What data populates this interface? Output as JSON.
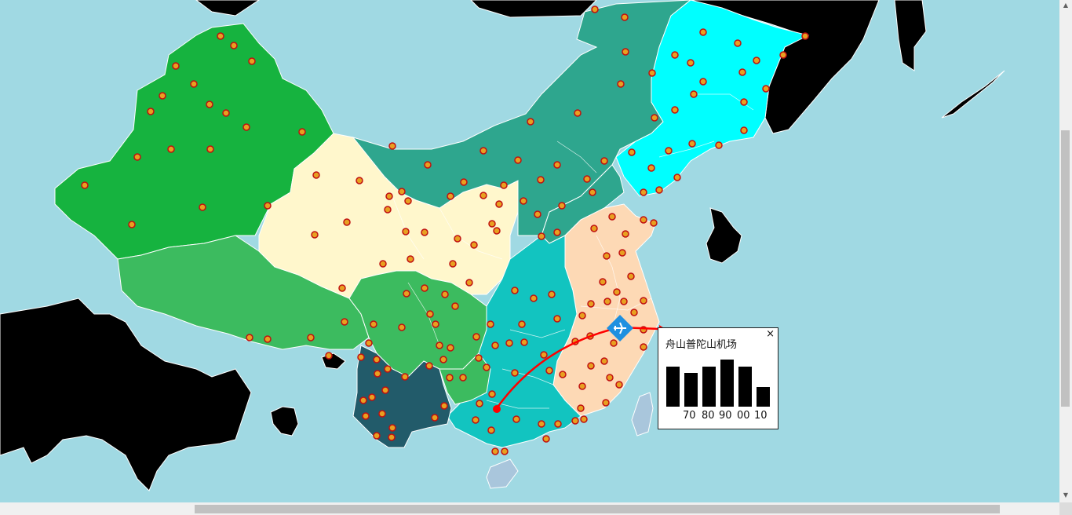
{
  "popup": {
    "title": "舟山普陀山机场",
    "close_glyph": "×",
    "x_labels": [
      "70",
      "80",
      "90",
      "00",
      "10"
    ]
  },
  "chart_data": {
    "type": "bar",
    "title": "舟山普陀山机场",
    "categories": [
      "",
      "",
      "",
      "",
      "",
      ""
    ],
    "values": [
      54,
      46,
      54,
      64,
      54,
      27
    ],
    "tick_labels": [
      "70",
      "80",
      "90",
      "00",
      "10"
    ],
    "ylim": [
      0,
      70
    ],
    "grid": false,
    "legend": "none"
  },
  "map": {
    "airport_icon": "airplane-icon",
    "origin_marker": "red-dot",
    "flight_path_color": "#ff0000",
    "ocean_color": "#a0d9e3",
    "region_colors": [
      "#16b33f",
      "#3cbb5f",
      "#fff7cc",
      "#2ea68e",
      "#00ffff",
      "#fdd9b5",
      "#12c4c0",
      "#225b6a",
      "#000000"
    ],
    "city_marker": "orange-dot-marker",
    "city_count": 170
  },
  "scrollbars": {
    "up_arrow": "▲",
    "down_arrow": "▼",
    "left_arrow": "◀",
    "right_arrow": "▶"
  }
}
